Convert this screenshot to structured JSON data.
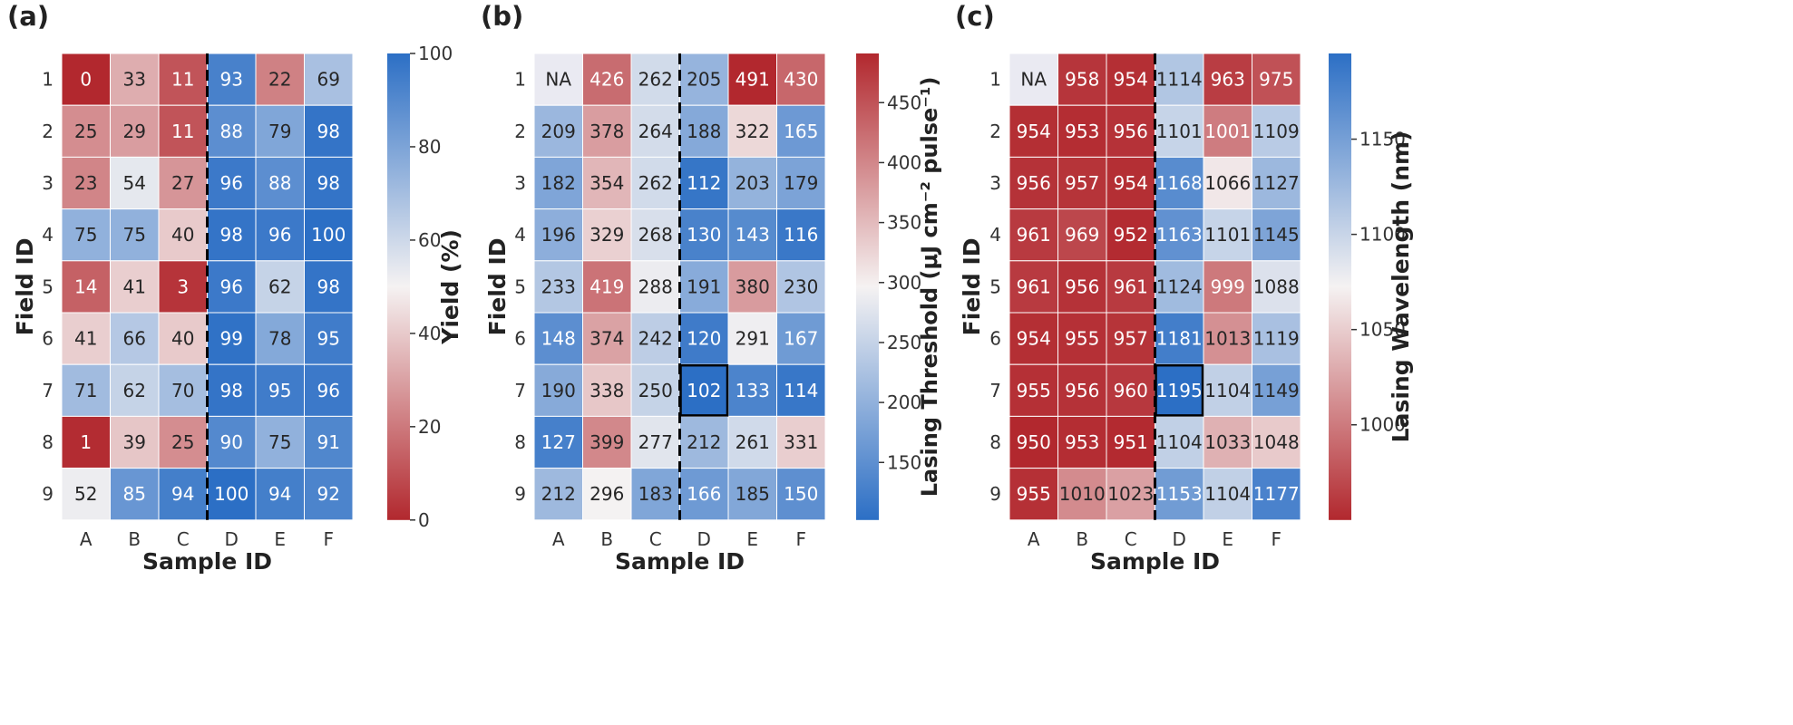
{
  "chart_data": [
    {
      "type": "heatmap",
      "title": "(a)",
      "xlabel": "Sample ID",
      "ylabel": "Field ID",
      "colorbar_label": "Yield (%)",
      "colorbar_ticks": [
        "0",
        "20",
        "40",
        "60",
        "80",
        "100"
      ],
      "colorbar_tick_values": [
        0,
        20,
        40,
        60,
        80,
        100
      ],
      "vmin": 0,
      "vmax": 100,
      "colormap": "red-white-blue (low red, high blue)",
      "x_categories": [
        "A",
        "B",
        "C",
        "D",
        "E",
        "F"
      ],
      "y_categories": [
        "1",
        "2",
        "3",
        "4",
        "5",
        "6",
        "7",
        "8",
        "9"
      ],
      "divider_between": [
        "C",
        "D"
      ],
      "highlight_cell": null,
      "values": [
        [
          "0",
          "33",
          "11",
          "93",
          "22",
          "69"
        ],
        [
          "25",
          "29",
          "11",
          "88",
          "79",
          "98"
        ],
        [
          "23",
          "54",
          "27",
          "96",
          "88",
          "98"
        ],
        [
          "75",
          "75",
          "40",
          "98",
          "96",
          "100"
        ],
        [
          "14",
          "41",
          "3",
          "96",
          "62",
          "98"
        ],
        [
          "41",
          "66",
          "40",
          "99",
          "78",
          "95"
        ],
        [
          "71",
          "62",
          "70",
          "98",
          "95",
          "96"
        ],
        [
          "1",
          "39",
          "25",
          "90",
          "75",
          "91"
        ],
        [
          "52",
          "85",
          "94",
          "100",
          "94",
          "92"
        ]
      ]
    },
    {
      "type": "heatmap",
      "title": "(b)",
      "xlabel": "Sample ID",
      "ylabel": "Field ID",
      "colorbar_label": "Lasing Threshold (μJ cm⁻² pulse⁻¹)",
      "colorbar_ticks": [
        "150",
        "200",
        "250",
        "300",
        "350",
        "400",
        "450"
      ],
      "colorbar_tick_values": [
        150,
        200,
        250,
        300,
        350,
        400,
        450
      ],
      "vmin": 102,
      "vmax": 491,
      "colormap": "blue-white-red (low blue, high red)",
      "x_categories": [
        "A",
        "B",
        "C",
        "D",
        "E",
        "F"
      ],
      "y_categories": [
        "1",
        "2",
        "3",
        "4",
        "5",
        "6",
        "7",
        "8",
        "9"
      ],
      "divider_between": [
        "C",
        "D"
      ],
      "highlight_cell": {
        "row": "7",
        "col": "D"
      },
      "values": [
        [
          "NA",
          "426",
          "262",
          "205",
          "491",
          "430"
        ],
        [
          "209",
          "378",
          "264",
          "188",
          "322",
          "165"
        ],
        [
          "182",
          "354",
          "262",
          "112",
          "203",
          "179"
        ],
        [
          "196",
          "329",
          "268",
          "130",
          "143",
          "116"
        ],
        [
          "233",
          "419",
          "288",
          "191",
          "380",
          "230"
        ],
        [
          "148",
          "374",
          "242",
          "120",
          "291",
          "167"
        ],
        [
          "190",
          "338",
          "250",
          "102",
          "133",
          "114"
        ],
        [
          "127",
          "399",
          "277",
          "212",
          "261",
          "331"
        ],
        [
          "212",
          "296",
          "183",
          "166",
          "185",
          "150"
        ]
      ]
    },
    {
      "type": "heatmap",
      "title": "(c)",
      "xlabel": "Sample ID",
      "ylabel": "Field ID",
      "colorbar_label": "Lasing Wavelength (nm)",
      "colorbar_ticks": [
        "1000",
        "1050",
        "1100",
        "1150"
      ],
      "colorbar_tick_values": [
        1000,
        1050,
        1100,
        1150
      ],
      "vmin": 950,
      "vmax": 1195,
      "colormap": "red-white-blue (low red, high blue)",
      "x_categories": [
        "A",
        "B",
        "C",
        "D",
        "E",
        "F"
      ],
      "y_categories": [
        "1",
        "2",
        "3",
        "4",
        "5",
        "6",
        "7",
        "8",
        "9"
      ],
      "divider_between": [
        "C",
        "D"
      ],
      "highlight_cell": {
        "row": "7",
        "col": "D"
      },
      "values": [
        [
          "NA",
          "958",
          "954",
          "1114",
          "963",
          "975"
        ],
        [
          "954",
          "953",
          "956",
          "1101",
          "1001",
          "1109"
        ],
        [
          "956",
          "957",
          "954",
          "1168",
          "1066",
          "1127"
        ],
        [
          "961",
          "969",
          "952",
          "1163",
          "1101",
          "1145"
        ],
        [
          "961",
          "956",
          "961",
          "1124",
          "999",
          "1088"
        ],
        [
          "954",
          "955",
          "957",
          "1181",
          "1013",
          "1119"
        ],
        [
          "955",
          "956",
          "960",
          "1195",
          "1104",
          "1149"
        ],
        [
          "950",
          "953",
          "951",
          "1104",
          "1033",
          "1048"
        ],
        [
          "955",
          "1010",
          "1023",
          "1153",
          "1104",
          "1177"
        ]
      ]
    }
  ],
  "colors": {
    "red": "#b2282e",
    "white": "#f5f2f2",
    "blue": "#2c6fc5",
    "na_cell": "#eaeaf2"
  }
}
